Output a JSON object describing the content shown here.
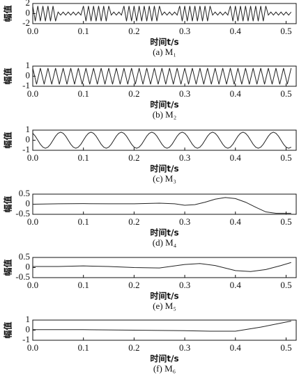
{
  "chart_data": [
    {
      "type": "line",
      "y_label": "幅值",
      "x_label": "时间t/s",
      "caption": "(a) M₁",
      "color": "#222222",
      "xlim": [
        0,
        0.52
      ],
      "ylim": [
        -2,
        2
      ],
      "yticks": [
        -2,
        0,
        2
      ],
      "xticks": [
        {
          "value": 0,
          "label": "0.0"
        },
        0.1,
        0.2,
        0.3,
        0.4,
        0.5
      ],
      "x": [
        0,
        0.005,
        0.01,
        0.015,
        0.02,
        0.025,
        0.03,
        0.035,
        0.04,
        0.045,
        0.05,
        0.055,
        0.06,
        0.065,
        0.07,
        0.075,
        0.08,
        0.085,
        0.09,
        0.095,
        0.1,
        0.105,
        0.11,
        0.115,
        0.12,
        0.125,
        0.13,
        0.135,
        0.14,
        0.145,
        0.15,
        0.155,
        0.16,
        0.165,
        0.17,
        0.175,
        0.18,
        0.185,
        0.19,
        0.195,
        0.2,
        0.205,
        0.21,
        0.215,
        0.22,
        0.225,
        0.23,
        0.235,
        0.24,
        0.245,
        0.25,
        0.255,
        0.26,
        0.265,
        0.27,
        0.275,
        0.28,
        0.285,
        0.29,
        0.295,
        0.3,
        0.305,
        0.31,
        0.315,
        0.32,
        0.325,
        0.33,
        0.335,
        0.34,
        0.345,
        0.35,
        0.355,
        0.36,
        0.365,
        0.37,
        0.375,
        0.38,
        0.385,
        0.39,
        0.395,
        0.4,
        0.405,
        0.41,
        0.415,
        0.42,
        0.425,
        0.43,
        0.435,
        0.44,
        0.445,
        0.45,
        0.455,
        0.46,
        0.465,
        0.47,
        0.475,
        0.48,
        0.485,
        0.49,
        0.495,
        0.5,
        0.505,
        0.51
      ],
      "values": [
        1.5,
        -1.5,
        1.5,
        -1.5,
        1.5,
        -1.5,
        1.5,
        -1.5,
        1.5,
        -1.5,
        0.3,
        -0.3,
        0.3,
        -0.3,
        0.3,
        -0.3,
        0.3,
        -0.3,
        0.3,
        -0.3,
        1.5,
        -1.5,
        1.5,
        -1.5,
        1.5,
        -1.5,
        1.5,
        -1.5,
        1.5,
        -1.5,
        1.5,
        -0.3,
        0.3,
        -0.3,
        0.3,
        -0.3,
        1.5,
        -1.5,
        1.5,
        -1.5,
        1.5,
        -1.5,
        1.5,
        -1.5,
        1.5,
        -1.5,
        1.5,
        -1.5,
        1.5,
        -1.5,
        1.5,
        -0.3,
        0.3,
        -0.3,
        0.3,
        -0.3,
        0.3,
        -0.3,
        1.5,
        -1.5,
        1.5,
        -1.5,
        1.5,
        -1.5,
        1.5,
        -1.5,
        1.5,
        -1.5,
        1.5,
        -1.5,
        1.5,
        -0.3,
        0.3,
        -0.3,
        0.3,
        -0.3,
        0.3,
        -0.3,
        1.5,
        -1.5,
        1.5,
        -1.5,
        1.5,
        -1.5,
        1.5,
        -1.5,
        1.5,
        -1.5,
        1.5,
        -1.5,
        1.5,
        -1.5,
        1.5,
        -0.3,
        0.3,
        -0.3,
        0.3,
        -0.3,
        0.3,
        -0.3,
        0.3,
        -0.3,
        0.3
      ]
    },
    {
      "type": "line",
      "y_label": "幅值",
      "x_label": "时间t/s",
      "caption": "(b) M₂",
      "color": "#222222",
      "xlim": [
        0,
        0.52
      ],
      "ylim": [
        -1,
        1
      ],
      "yticks": [
        -1,
        0,
        1
      ],
      "xticks": [
        {
          "value": 0,
          "label": "0.0"
        },
        0.1,
        0.2,
        0.3,
        0.4,
        0.5
      ],
      "x": [
        0,
        0.0075,
        0.015,
        0.0225,
        0.03,
        0.0375,
        0.045,
        0.0525,
        0.06,
        0.0675,
        0.075,
        0.0825,
        0.09,
        0.0975,
        0.105,
        0.1125,
        0.12,
        0.1275,
        0.135,
        0.1425,
        0.15,
        0.1575,
        0.165,
        0.1725,
        0.18,
        0.1875,
        0.195,
        0.2025,
        0.21,
        0.2175,
        0.225,
        0.2325,
        0.24,
        0.2475,
        0.255,
        0.2625,
        0.27,
        0.2775,
        0.285,
        0.2925,
        0.3,
        0.3075,
        0.315,
        0.3225,
        0.33,
        0.3375,
        0.345,
        0.3525,
        0.36,
        0.3675,
        0.375,
        0.3825,
        0.39,
        0.3975,
        0.405,
        0.4125,
        0.42,
        0.4275,
        0.435,
        0.4425,
        0.45,
        0.4575,
        0.465,
        0.4725,
        0.48,
        0.4875,
        0.495,
        0.5025,
        0.51
      ],
      "values": [
        0.8,
        -0.8,
        0.8,
        -0.8,
        0.8,
        -0.8,
        0.8,
        -0.8,
        0.8,
        -0.8,
        0.8,
        -0.8,
        0.8,
        -0.8,
        0.8,
        -0.8,
        0.8,
        -0.8,
        0.8,
        -0.8,
        0.8,
        -0.8,
        0.8,
        -0.8,
        0.8,
        -0.8,
        0.8,
        -0.8,
        0.8,
        -0.8,
        0.8,
        -0.8,
        0.8,
        -0.8,
        0.8,
        -0.8,
        0.8,
        -0.8,
        0.8,
        -0.8,
        0.8,
        -0.8,
        0.8,
        -0.8,
        0.8,
        -0.8,
        0.8,
        -0.8,
        0.8,
        -0.8,
        0.8,
        -0.8,
        0.8,
        -0.8,
        0.8,
        -0.8,
        0.8,
        -0.8,
        0.8,
        -0.8,
        0.8,
        -0.8,
        0.8,
        -0.8,
        0.8,
        -0.8,
        0.8,
        -0.8,
        0.8
      ]
    },
    {
      "type": "line",
      "y_label": "幅值",
      "x_label": "时间t/s",
      "caption": "(c) M₃",
      "color": "#222222",
      "xlim": [
        0,
        0.52
      ],
      "ylim": [
        -1,
        1
      ],
      "yticks": [
        -1,
        0,
        1
      ],
      "xticks": [
        {
          "value": 0,
          "label": "0.0"
        },
        0.1,
        0.2,
        0.3,
        0.4,
        0.5
      ],
      "x": [
        0,
        0.005,
        0.01,
        0.015,
        0.02,
        0.025,
        0.03,
        0.035,
        0.04,
        0.045,
        0.05,
        0.055,
        0.06,
        0.065,
        0.07,
        0.075,
        0.08,
        0.085,
        0.09,
        0.095,
        0.1,
        0.105,
        0.11,
        0.115,
        0.12,
        0.125,
        0.13,
        0.135,
        0.14,
        0.145,
        0.15,
        0.155,
        0.16,
        0.165,
        0.17,
        0.175,
        0.18,
        0.185,
        0.19,
        0.195,
        0.2,
        0.205,
        0.21,
        0.215,
        0.22,
        0.225,
        0.23,
        0.235,
        0.24,
        0.245,
        0.25,
        0.255,
        0.26,
        0.265,
        0.27,
        0.275,
        0.28,
        0.285,
        0.29,
        0.295,
        0.3,
        0.305,
        0.31,
        0.315,
        0.32,
        0.325,
        0.33,
        0.335,
        0.34,
        0.345,
        0.35,
        0.355,
        0.36,
        0.365,
        0.37,
        0.375,
        0.38,
        0.385,
        0.39,
        0.395,
        0.4,
        0.405,
        0.41,
        0.415,
        0.42,
        0.425,
        0.43,
        0.435,
        0.44,
        0.445,
        0.45,
        0.455,
        0.46,
        0.465,
        0.47,
        0.475,
        0.48,
        0.485,
        0.49,
        0.495,
        0.5,
        0.505,
        0.51
      ],
      "values": [
        0.69,
        0.4,
        0,
        -0.4,
        -0.69,
        -0.8,
        -0.69,
        -0.4,
        0,
        0.4,
        0.69,
        0.8,
        0.69,
        0.4,
        0,
        -0.4,
        -0.69,
        -0.8,
        -0.69,
        -0.4,
        0,
        0.4,
        0.69,
        0.8,
        0.69,
        0.4,
        0,
        -0.4,
        -0.69,
        -0.8,
        -0.69,
        -0.4,
        0,
        0.4,
        0.69,
        0.8,
        0.69,
        0.4,
        0,
        -0.4,
        -0.69,
        -0.8,
        -0.69,
        -0.4,
        0,
        0.4,
        0.69,
        0.8,
        0.69,
        0.4,
        0,
        -0.4,
        -0.69,
        -0.8,
        -0.69,
        -0.4,
        0,
        0.4,
        0.69,
        0.8,
        0.69,
        0.4,
        0,
        -0.4,
        -0.69,
        -0.8,
        -0.69,
        -0.4,
        0,
        0.4,
        0.69,
        0.8,
        0.69,
        0.4,
        0,
        -0.4,
        -0.69,
        -0.8,
        -0.69,
        -0.4,
        0,
        0.4,
        0.69,
        0.8,
        0.69,
        0.4,
        0,
        -0.4,
        -0.69,
        -0.8,
        -0.69,
        -0.4,
        0,
        0.4,
        0.69,
        0.8,
        0.69,
        0.4,
        0,
        -0.4,
        -0.69,
        -0.8,
        -0.69
      ]
    },
    {
      "type": "line",
      "y_label": "幅值",
      "x_label": "时间t/s",
      "caption": "(d) M₄",
      "color": "#222222",
      "xlim": [
        0,
        0.52
      ],
      "ylim": [
        -0.5,
        0.5
      ],
      "yticks": [
        -0.5,
        0,
        0.5
      ],
      "xticks": [
        {
          "value": 0,
          "label": "0.0"
        },
        0.1,
        0.2,
        0.3,
        0.4,
        0.5
      ],
      "x": [
        0,
        0.05,
        0.1,
        0.15,
        0.2,
        0.25,
        0.28,
        0.3,
        0.32,
        0.34,
        0.36,
        0.38,
        0.4,
        0.42,
        0.44,
        0.46,
        0.48,
        0.5,
        0.51
      ],
      "values": [
        0,
        0.02,
        0.03,
        0.02,
        0.02,
        0.05,
        0.02,
        -0.05,
        -0.02,
        0.1,
        0.25,
        0.33,
        0.28,
        0.1,
        -0.15,
        -0.38,
        -0.45,
        -0.45,
        -0.45
      ]
    },
    {
      "type": "line",
      "y_label": "幅值",
      "x_label": "时间t/s",
      "caption": "(e) M₅",
      "color": "#222222",
      "xlim": [
        0,
        0.52
      ],
      "ylim": [
        -0.5,
        0.5
      ],
      "yticks": [
        -0.5,
        0,
        0.5
      ],
      "xticks": [
        {
          "value": 0,
          "label": "0.0"
        },
        0.1,
        0.2,
        0.3,
        0.4,
        0.5
      ],
      "x": [
        0,
        0.05,
        0.1,
        0.15,
        0.2,
        0.25,
        0.3,
        0.33,
        0.36,
        0.4,
        0.43,
        0.46,
        0.49,
        0.51
      ],
      "values": [
        0.05,
        0.05,
        0.08,
        0.05,
        0,
        -0.02,
        0.15,
        0.2,
        0.1,
        -0.15,
        -0.2,
        -0.1,
        0.1,
        0.25
      ]
    },
    {
      "type": "line",
      "y_label": "幅值",
      "x_label": "时间t/s",
      "caption": "(f) M₆",
      "color": "#222222",
      "xlim": [
        0,
        0.52
      ],
      "ylim": [
        -1,
        1
      ],
      "yticks": [
        -1,
        0,
        1
      ],
      "xticks": [
        {
          "value": 0,
          "label": "0.0"
        },
        0.1,
        0.2,
        0.3,
        0.4,
        0.5
      ],
      "x": [
        0,
        0.1,
        0.2,
        0.3,
        0.35,
        0.4,
        0.45,
        0.5,
        0.51
      ],
      "values": [
        0.05,
        0.05,
        0,
        -0.05,
        -0.1,
        -0.1,
        0.3,
        0.8,
        0.9
      ]
    }
  ]
}
